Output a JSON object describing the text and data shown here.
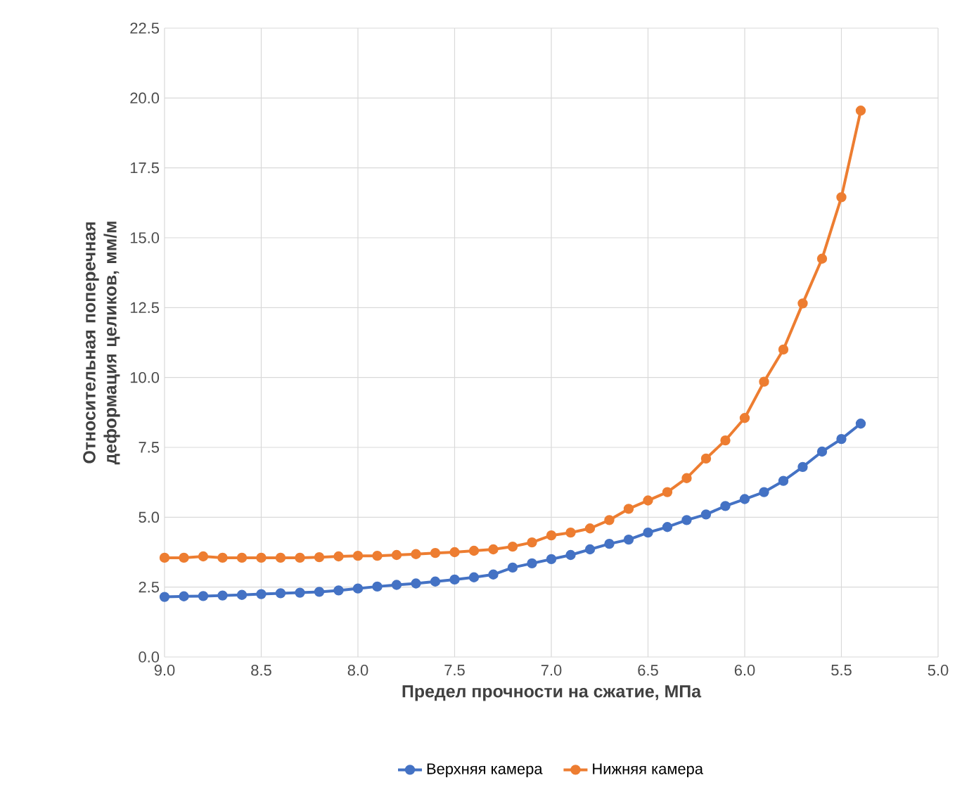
{
  "chart_data": {
    "type": "line",
    "xlabel": "Предел прочности на сжатие, МПа",
    "ylabel": "Относительная поперечная деформация целиков, мм/м",
    "x": [
      9.0,
      8.9,
      8.8,
      8.7,
      8.6,
      8.5,
      8.4,
      8.3,
      8.2,
      8.1,
      8.0,
      7.9,
      7.8,
      7.7,
      7.6,
      7.5,
      7.4,
      7.3,
      7.2,
      7.1,
      7.0,
      6.9,
      6.8,
      6.7,
      6.6,
      6.5,
      6.4,
      6.3,
      6.2,
      6.1,
      6.0,
      5.9,
      5.8,
      5.7,
      5.6,
      5.5,
      5.4
    ],
    "series": [
      {
        "name": "Верхняя камера",
        "color": "#4472c4",
        "values": [
          2.15,
          2.17,
          2.18,
          2.2,
          2.22,
          2.25,
          2.28,
          2.3,
          2.33,
          2.38,
          2.45,
          2.52,
          2.58,
          2.63,
          2.7,
          2.77,
          2.85,
          2.95,
          3.2,
          3.35,
          3.5,
          3.65,
          3.85,
          4.05,
          4.2,
          4.45,
          4.65,
          4.9,
          5.1,
          5.4,
          5.65,
          5.9,
          6.3,
          6.8,
          7.35,
          7.8,
          8.35
        ]
      },
      {
        "name": "Нижняя камера",
        "color": "#ed7d31",
        "values": [
          3.55,
          3.55,
          3.6,
          3.55,
          3.55,
          3.55,
          3.55,
          3.55,
          3.57,
          3.6,
          3.62,
          3.62,
          3.65,
          3.68,
          3.72,
          3.75,
          3.8,
          3.85,
          3.95,
          4.1,
          4.35,
          4.45,
          4.6,
          4.9,
          5.3,
          5.6,
          5.9,
          6.4,
          7.1,
          7.75,
          8.55,
          9.85,
          11.0,
          12.65,
          14.25,
          16.45,
          19.55
        ]
      }
    ],
    "xlim": [
      9.0,
      5.0
    ],
    "xticks": [
      {
        "value": 9.0,
        "label": "9.0"
      },
      {
        "value": 8.5,
        "label": "8.5"
      },
      {
        "value": 8.0,
        "label": "8.0"
      },
      {
        "value": 7.5,
        "label": "7.5"
      },
      {
        "value": 7.0,
        "label": "7.0"
      },
      {
        "value": 6.5,
        "label": "6.5"
      },
      {
        "value": 6.0,
        "label": "6.0"
      },
      {
        "value": 5.5,
        "label": "5.5"
      },
      {
        "value": 5.0,
        "label": "5.0"
      }
    ],
    "ylim": [
      0,
      22.5
    ],
    "yticks": [
      {
        "value": 0,
        "label": "0.0"
      },
      {
        "value": 2.5,
        "label": "2.5"
      },
      {
        "value": 5,
        "label": "5.0"
      },
      {
        "value": 7.5,
        "label": "7.5"
      },
      {
        "value": 10,
        "label": "10.0"
      },
      {
        "value": 12.5,
        "label": "12.5"
      },
      {
        "value": 15,
        "label": "15.0"
      },
      {
        "value": 17.5,
        "label": "17.5"
      },
      {
        "value": 20,
        "label": "20.0"
      },
      {
        "value": 22.5,
        "label": "22.5"
      }
    ],
    "grid": true,
    "legend": "bottom",
    "marker": "circle",
    "line_style": "solid"
  }
}
